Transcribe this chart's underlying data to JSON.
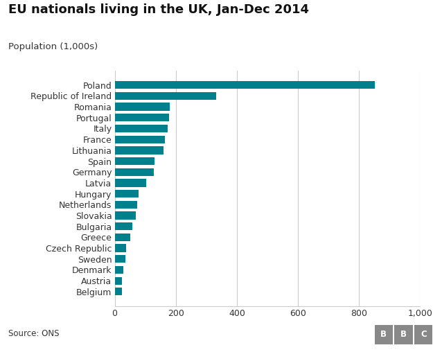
{
  "title": "EU nationals living in the UK, Jan-Dec 2014",
  "subtitle": "Population (1,000s)",
  "source": "Source: ONS",
  "bar_color": "#00808C",
  "background_color": "#ffffff",
  "grid_color": "#cccccc",
  "text_color": "#333333",
  "categories": [
    "Poland",
    "Republic of Ireland",
    "Romania",
    "Portugal",
    "Italy",
    "France",
    "Lithuania",
    "Spain",
    "Germany",
    "Latvia",
    "Hungary",
    "Netherlands",
    "Slovakia",
    "Bulgaria",
    "Greece",
    "Czech Republic",
    "Sweden",
    "Denmark",
    "Austria",
    "Belgium"
  ],
  "values": [
    853,
    332,
    180,
    177,
    173,
    165,
    160,
    130,
    128,
    103,
    77,
    74,
    70,
    57,
    50,
    38,
    34,
    29,
    24,
    23
  ],
  "xlim": [
    0,
    1000
  ],
  "xticks": [
    0,
    200,
    400,
    600,
    800,
    1000
  ],
  "xtick_labels": [
    "0",
    "200",
    "400",
    "600",
    "800",
    "1,000"
  ],
  "title_fontsize": 13,
  "subtitle_fontsize": 9.5,
  "tick_fontsize": 9,
  "label_fontsize": 9,
  "source_fontsize": 8.5,
  "bbc_box_color": "#888888",
  "bbc_text_color": "#ffffff"
}
